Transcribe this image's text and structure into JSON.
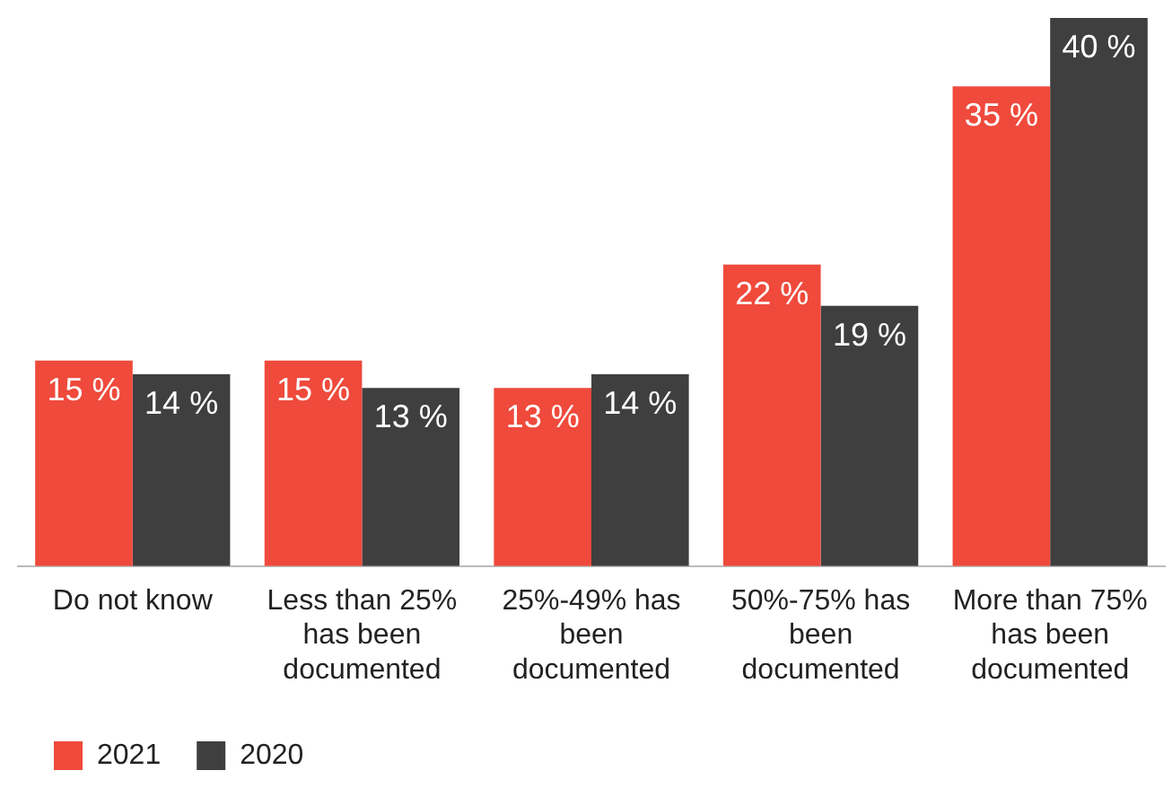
{
  "chart_data": {
    "type": "bar",
    "categories": [
      "Do not know",
      "Less than 25% has been documented",
      "25%-49% has been documented",
      "50%-75% has been documented",
      "More than 75% has been documented"
    ],
    "series": [
      {
        "name": "2021",
        "color": "#ef4a3c",
        "values": [
          15,
          15,
          13,
          22,
          35
        ],
        "value_labels": [
          "15 %",
          "15 %",
          "13 %",
          "22 %",
          "35 %"
        ]
      },
      {
        "name": "2020",
        "color": "#3f3f3f",
        "values": [
          14,
          13,
          14,
          19,
          40
        ],
        "value_labels": [
          "14 %",
          "13 %",
          "14 %",
          "19 %",
          "40 %"
        ]
      }
    ],
    "legend": "bottom left",
    "grid": false
  }
}
